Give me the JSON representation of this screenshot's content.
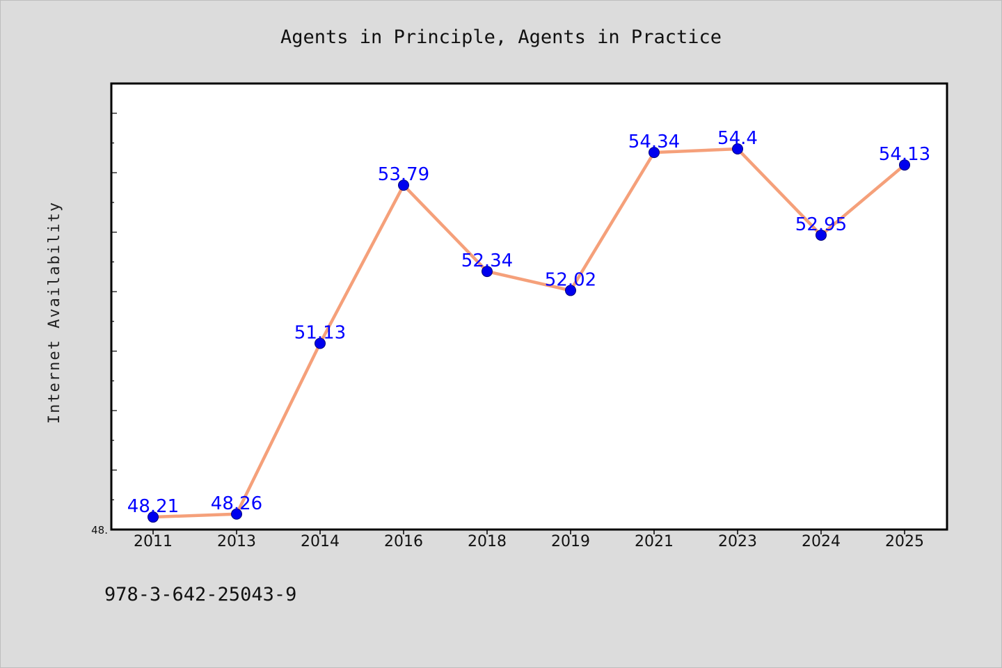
{
  "chart_data": {
    "type": "line",
    "title": "Agents in Principle, Agents in Practice",
    "ylabel": "Internet Availability",
    "xlabel": "",
    "categories": [
      "2011",
      "2013",
      "2014",
      "2016",
      "2018",
      "2019",
      "2021",
      "2023",
      "2024",
      "2025"
    ],
    "series": [
      {
        "values": [
          48.21,
          48.26,
          51.13,
          53.79,
          52.34,
          52.02,
          54.34,
          54.4,
          52.95,
          54.13
        ],
        "labels": [
          "48.21",
          "48.26",
          "51.13",
          "53.79",
          "52.34",
          "52.02",
          "54.34",
          "54.4",
          "52.95",
          "54.13"
        ]
      }
    ],
    "ylim": [
      48.0,
      55.5
    ],
    "ytick_label": "48.",
    "grid": false,
    "line_color": "#f5a07a",
    "marker_color": "#0000ee",
    "label_color": "#0000ff"
  },
  "footer": {
    "isbn": "978-3-642-25043-9"
  }
}
